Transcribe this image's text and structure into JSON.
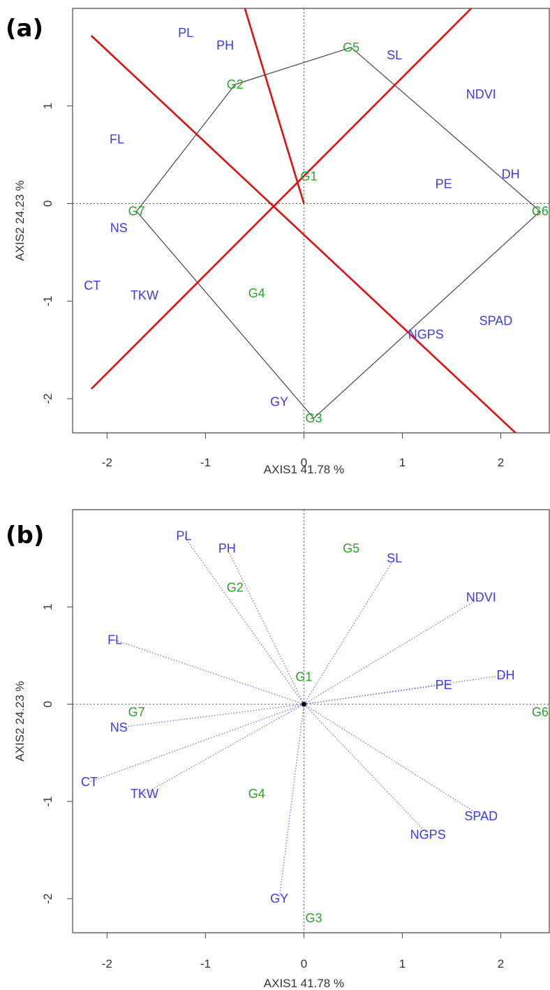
{
  "chart_data": [
    {
      "type": "scatter",
      "panel_label": "(a)",
      "xlabel": "AXIS1 41.78 %",
      "ylabel": "AXIS2 24.23 %",
      "xlim": [
        -2.35,
        2.5
      ],
      "ylim": [
        -2.35,
        2.0
      ],
      "x_ticks": [
        -2,
        -1,
        0,
        1,
        2
      ],
      "y_ticks": [
        -2,
        -1,
        0,
        1
      ],
      "genotypes": [
        {
          "label": "G1",
          "x": 0.05,
          "y": 0.28
        },
        {
          "label": "G2",
          "x": -0.7,
          "y": 1.22
        },
        {
          "label": "G3",
          "x": 0.1,
          "y": -2.2
        },
        {
          "label": "G4",
          "x": -0.48,
          "y": -0.92
        },
        {
          "label": "G5",
          "x": 0.48,
          "y": 1.6
        },
        {
          "label": "G6",
          "x": 2.4,
          "y": -0.08
        },
        {
          "label": "G7",
          "x": -1.7,
          "y": -0.08
        }
      ],
      "traits": [
        {
          "label": "PL",
          "x": -1.2,
          "y": 1.75
        },
        {
          "label": "PH",
          "x": -0.8,
          "y": 1.62
        },
        {
          "label": "SL",
          "x": 0.92,
          "y": 1.52
        },
        {
          "label": "NDVI",
          "x": 1.8,
          "y": 1.12
        },
        {
          "label": "FL",
          "x": -1.9,
          "y": 0.66
        },
        {
          "label": "DH",
          "x": 2.1,
          "y": 0.3
        },
        {
          "label": "PE",
          "x": 1.42,
          "y": 0.2
        },
        {
          "label": "NS",
          "x": -1.88,
          "y": -0.25
        },
        {
          "label": "CT",
          "x": -2.15,
          "y": -0.84
        },
        {
          "label": "TKW",
          "x": -1.62,
          "y": -0.94
        },
        {
          "label": "SPAD",
          "x": 1.95,
          "y": -1.2
        },
        {
          "label": "NGPS",
          "x": 1.24,
          "y": -1.34
        },
        {
          "label": "GY",
          "x": -0.25,
          "y": -2.03
        }
      ],
      "polygon": [
        "G5",
        "G6",
        "G3",
        "G7",
        "G2"
      ],
      "sector_lines": [
        [
          [
            -2.16,
            1.72
          ],
          [
            2.16,
            -2.36
          ]
        ],
        [
          [
            -2.16,
            -1.9
          ],
          [
            1.7,
            2.0
          ]
        ],
        [
          [
            -0.6,
            2.0
          ],
          [
            0.0,
            0.0
          ]
        ]
      ]
    },
    {
      "type": "scatter",
      "panel_label": "(b)",
      "xlabel": "AXIS1 41.78 %",
      "ylabel": "AXIS2 24.23 %",
      "xlim": [
        -2.35,
        2.5
      ],
      "ylim": [
        -2.35,
        2.0
      ],
      "x_ticks": [
        -2,
        -1,
        0,
        1,
        2
      ],
      "y_ticks": [
        -2,
        -1,
        0,
        1
      ],
      "genotypes": [
        {
          "label": "G1",
          "x": 0.0,
          "y": 0.28
        },
        {
          "label": "G2",
          "x": -0.7,
          "y": 1.2
        },
        {
          "label": "G3",
          "x": 0.1,
          "y": -2.2
        },
        {
          "label": "G4",
          "x": -0.48,
          "y": -0.92
        },
        {
          "label": "G5",
          "x": 0.48,
          "y": 1.6
        },
        {
          "label": "G6",
          "x": 2.4,
          "y": -0.08
        },
        {
          "label": "G7",
          "x": -1.7,
          "y": -0.08
        }
      ],
      "traits": [
        {
          "label": "PL",
          "x": -1.22,
          "y": 1.73
        },
        {
          "label": "PH",
          "x": -0.78,
          "y": 1.6
        },
        {
          "label": "SL",
          "x": 0.92,
          "y": 1.5
        },
        {
          "label": "NDVI",
          "x": 1.8,
          "y": 1.1
        },
        {
          "label": "FL",
          "x": -1.92,
          "y": 0.66
        },
        {
          "label": "DH",
          "x": 2.05,
          "y": 0.3
        },
        {
          "label": "PE",
          "x": 1.42,
          "y": 0.2
        },
        {
          "label": "NS",
          "x": -1.88,
          "y": -0.24
        },
        {
          "label": "CT",
          "x": -2.18,
          "y": -0.8
        },
        {
          "label": "TKW",
          "x": -1.62,
          "y": -0.92
        },
        {
          "label": "SPAD",
          "x": 1.8,
          "y": -1.15
        },
        {
          "label": "NGPS",
          "x": 1.26,
          "y": -1.34
        },
        {
          "label": "GY",
          "x": -0.25,
          "y": -2.0
        }
      ]
    }
  ]
}
